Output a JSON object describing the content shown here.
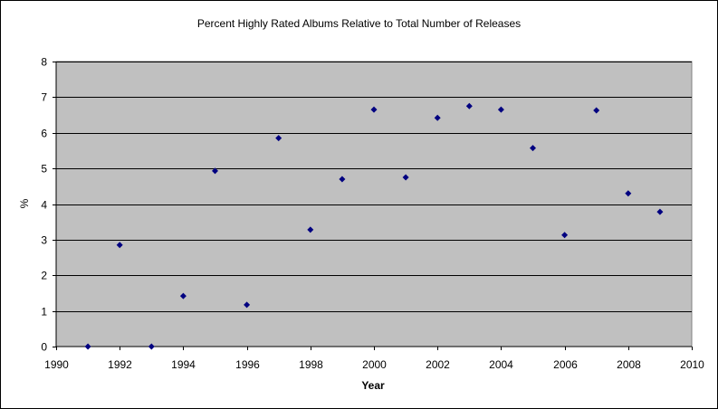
{
  "chart_data": {
    "type": "scatter",
    "title": "Percent Highly Rated Albums Relative to Total Number of Releases",
    "xlabel": "Year",
    "ylabel": "%",
    "xlim": [
      1990,
      2010
    ],
    "ylim": [
      0,
      8
    ],
    "x_ticks": [
      1990,
      1992,
      1994,
      1996,
      1998,
      2000,
      2002,
      2004,
      2006,
      2008,
      2010
    ],
    "y_ticks": [
      0,
      1,
      2,
      3,
      4,
      5,
      6,
      7,
      8
    ],
    "grid": "horizontal",
    "legend": "none",
    "colors": {
      "plot_background": "#c0c0c0",
      "marker": "#000080",
      "gridline": "#000000"
    },
    "series": [
      {
        "x": [
          1991,
          1992,
          1993,
          1994,
          1995,
          1996,
          1997,
          1998,
          1999,
          2000,
          2001,
          2002,
          2003,
          2004,
          2005,
          2006,
          2007,
          2008,
          2009
        ],
        "y": [
          0.0,
          2.85,
          0.0,
          1.42,
          4.93,
          1.17,
          5.85,
          3.28,
          4.7,
          6.65,
          4.75,
          6.42,
          6.75,
          6.65,
          5.57,
          3.13,
          6.63,
          4.3,
          3.78
        ]
      }
    ]
  }
}
